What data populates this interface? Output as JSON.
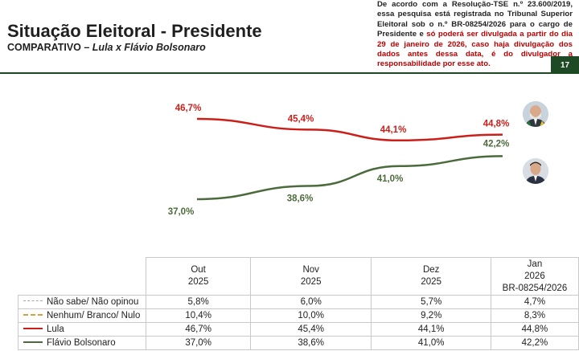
{
  "header": {
    "title": "Situação Eleitoral - Presidente",
    "subtitle_prefix": "COMPARATIVO – ",
    "subtitle_emphasis": "Lula x Flávio Bolsonaro",
    "disclaimer_plain": "De acordo com a Resolução-TSE n.º 23.600/2019, essa pesquisa está registrada no Tribunal Superior Eleitoral sob o n.º BR-08254/2026 para o cargo de Presidente e ",
    "disclaimer_red": "só poderá ser divulgada a partir do dia 29 de janeiro de 2026, caso haja divulgação dos dados antes dessa data, é do divulgador a responsabilidade por esse ato.",
    "page_number": "17"
  },
  "colors": {
    "lula": "#cc1f1a",
    "flavio": "#4c6b3c",
    "nao_sabe": "#a8a8a8",
    "nenhum": "#d6a13a",
    "brand_green": "#1d4a24"
  },
  "chart_data": {
    "type": "line",
    "categories": [
      "Out 2025",
      "Nov 2025",
      "Dez 2025",
      "Jan 2026 BR-08254/2026"
    ],
    "series": [
      {
        "name": "Não sabe/ Não opinou",
        "values": [
          5.8,
          6.0,
          5.7,
          4.7
        ],
        "labels": [
          "5,8%",
          "6,0%",
          "5,7%",
          "4,7%"
        ],
        "plotted": false
      },
      {
        "name": "Nenhum/ Branco/ Nulo",
        "values": [
          10.4,
          10.0,
          9.2,
          8.3
        ],
        "labels": [
          "10,4%",
          "10,0%",
          "9,2%",
          "8,3%"
        ],
        "plotted": false
      },
      {
        "name": "Lula",
        "values": [
          46.7,
          45.4,
          44.1,
          44.8
        ],
        "labels": [
          "46,7%",
          "45,4%",
          "44,1%",
          "44,8%"
        ],
        "plotted": true,
        "avatar": "lula-avatar"
      },
      {
        "name": "Flávio Bolsonaro",
        "values": [
          37.0,
          38.6,
          41.0,
          42.2
        ],
        "labels": [
          "37,0%",
          "38,6%",
          "41,0%",
          "42,2%"
        ],
        "plotted": true,
        "avatar": "flavio-avatar"
      }
    ],
    "legend_placement": "table-below",
    "grid": false
  },
  "table": {
    "columns": [
      {
        "line1": "Out",
        "line2": "2025",
        "line3": ""
      },
      {
        "line1": "Nov",
        "line2": "2025",
        "line3": ""
      },
      {
        "line1": "Dez",
        "line2": "2025",
        "line3": ""
      },
      {
        "line1": "Jan",
        "line2": "2026",
        "line3": "BR-08254/2026"
      }
    ],
    "rows": [
      {
        "label": "Não sabe/ Não opinou",
        "key": "dotted",
        "cells": [
          "5,8%",
          "6,0%",
          "5,7%",
          "4,7%"
        ]
      },
      {
        "label": "Nenhum/ Branco/ Nulo",
        "key": "dashed",
        "cells": [
          "10,4%",
          "10,0%",
          "9,2%",
          "8,3%"
        ]
      },
      {
        "label": "Lula",
        "key": "red",
        "cells": [
          "46,7%",
          "45,4%",
          "44,1%",
          "44,8%"
        ]
      },
      {
        "label": "Flávio Bolsonaro",
        "key": "green",
        "cells": [
          "37,0%",
          "38,6%",
          "41,0%",
          "42,2%"
        ]
      }
    ]
  }
}
